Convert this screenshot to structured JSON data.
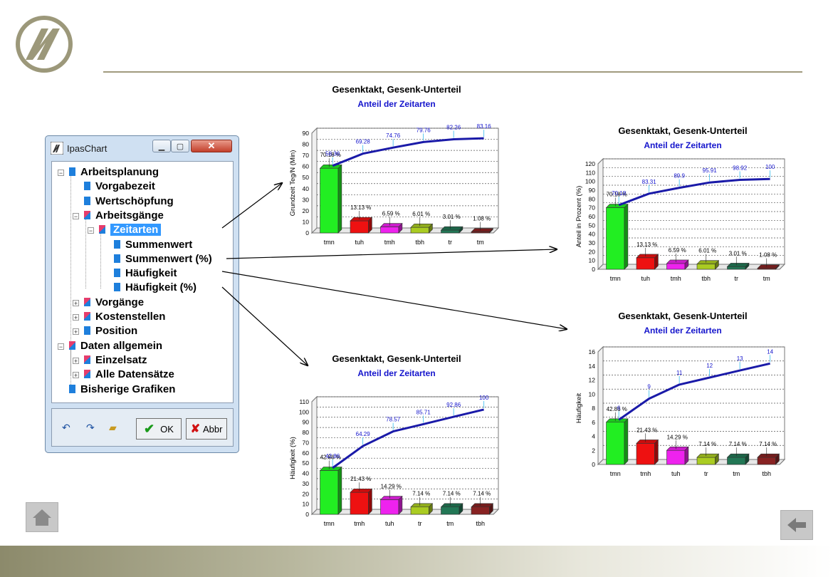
{
  "window": {
    "title": "IpasChart",
    "ok_label": "OK",
    "cancel_label": "Abbr",
    "tree": [
      {
        "label": "Arbeitsplanung",
        "level": 0,
        "expander": "-",
        "icon": "blue"
      },
      {
        "label": "Vorgabezeit",
        "level": 1,
        "expander": "",
        "icon": "blue"
      },
      {
        "label": "Wertschöpfung",
        "level": 1,
        "expander": "",
        "icon": "blue"
      },
      {
        "label": "Arbeitsgänge",
        "level": 1,
        "expander": "-",
        "icon": "folder"
      },
      {
        "label": "Zeitarten",
        "level": 2,
        "expander": "-",
        "icon": "folder",
        "selected": true
      },
      {
        "label": "Summenwert",
        "level": 3,
        "expander": "",
        "icon": "blue"
      },
      {
        "label": "Summenwert (%)",
        "level": 3,
        "expander": "",
        "icon": "blue"
      },
      {
        "label": "Häufigkeit",
        "level": 3,
        "expander": "",
        "icon": "blue"
      },
      {
        "label": "Häufigkeit (%)",
        "level": 3,
        "expander": "",
        "icon": "blue"
      },
      {
        "label": "Vorgänge",
        "level": 1,
        "expander": "+",
        "icon": "folder"
      },
      {
        "label": "Kostenstellen",
        "level": 1,
        "expander": "+",
        "icon": "folder"
      },
      {
        "label": "Position",
        "level": 1,
        "expander": "+",
        "icon": "blue"
      },
      {
        "label": "Daten allgemein",
        "level": 0,
        "expander": "-",
        "icon": "folder"
      },
      {
        "label": "Einzelsatz",
        "level": 1,
        "expander": "+",
        "icon": "folder"
      },
      {
        "label": "Alle Datensätze",
        "level": 1,
        "expander": "+",
        "icon": "folder"
      },
      {
        "label": "Bisherige Grafiken",
        "level": 0,
        "expander": "",
        "icon": "blue"
      }
    ]
  },
  "colors": {
    "green": "#22ee22",
    "red": "#ee1111",
    "magenta": "#ee22ee",
    "olive": "#aacc22",
    "teal": "#227755",
    "brown": "#882222",
    "curve": "#1a1aa8",
    "label_blue": "#1414cc"
  },
  "chart_data": [
    {
      "type": "bar",
      "title": "Gesenktakt, Gesenk-Unterteil",
      "subtitle": "Anteil der Zeitarten",
      "ylabel": "Grundzeit Teg/N (Min)",
      "categories": [
        "tmn",
        "tuh",
        "tmh",
        "tbh",
        "tr",
        "tm"
      ],
      "values": [
        58.36,
        10.92,
        5.48,
        5.0,
        2.5,
        0.9
      ],
      "bar_labels": [
        "70.18 %",
        "13.13 %",
        "6.59 %",
        "6.01 %",
        "3.01 %",
        "1.08 %"
      ],
      "cumulative": [
        58.36,
        69.28,
        74.76,
        79.76,
        82.26,
        83.16
      ],
      "ylim": [
        0,
        90
      ],
      "yticks": [
        "0",
        "10",
        "20",
        "30",
        "40",
        "50",
        "60",
        "70",
        "80",
        "90"
      ]
    },
    {
      "type": "bar",
      "title": "Gesenktakt, Gesenk-Unterteil",
      "subtitle": "Anteil der Zeitarten",
      "ylabel": "Anteil in Prozent (%)",
      "categories": [
        "tmn",
        "tuh",
        "tmh",
        "tbh",
        "tr",
        "tm"
      ],
      "values": [
        70.18,
        13.13,
        6.59,
        6.01,
        3.01,
        1.08
      ],
      "bar_labels": [
        "70.18 %",
        "13.13 %",
        "6.59 %",
        "6.01 %",
        "3.01 %",
        "1.08 %"
      ],
      "cumulative": [
        70.18,
        83.31,
        89.9,
        95.91,
        98.92,
        100
      ],
      "ylim": [
        0,
        120
      ],
      "yticks": [
        "0",
        "10",
        "20",
        "30",
        "40",
        "50",
        "60",
        "70",
        "80",
        "90",
        "100",
        "110",
        "120"
      ]
    },
    {
      "type": "bar",
      "title": "Gesenktakt, Gesenk-Unterteil",
      "subtitle": "Anteil der Zeitarten",
      "ylabel": "Häufigkeit (%)",
      "categories": [
        "tmn",
        "tmh",
        "tuh",
        "tr",
        "tm",
        "tbh"
      ],
      "values": [
        42.86,
        21.43,
        14.29,
        7.14,
        7.14,
        7.14
      ],
      "bar_labels": [
        "42.86 %",
        "21.43 %",
        "14.29 %",
        "7.14 %",
        "7.14 %",
        "7.14 %"
      ],
      "cumulative": [
        42.86,
        64.29,
        78.57,
        85.71,
        92.86,
        100
      ],
      "ylim": [
        0,
        110
      ],
      "yticks": [
        "0",
        "10",
        "20",
        "30",
        "40",
        "50",
        "60",
        "70",
        "80",
        "90",
        "100",
        "110"
      ]
    },
    {
      "type": "bar",
      "title": "Gesenktakt, Gesenk-Unterteil",
      "subtitle": "Anteil der Zeitarten",
      "ylabel": "Häufigkeit",
      "categories": [
        "tmn",
        "tmh",
        "tuh",
        "tr",
        "tm",
        "tbh"
      ],
      "values": [
        6,
        3,
        2,
        1,
        1,
        1
      ],
      "bar_labels": [
        "42.86 %",
        "21.43 %",
        "14.29 %",
        "7.14 %",
        "7.14 %",
        "7.14 %"
      ],
      "cumulative": [
        6,
        9,
        11,
        12,
        13,
        14
      ],
      "ylim": [
        0,
        16
      ],
      "yticks": [
        "0",
        "2",
        "4",
        "6",
        "8",
        "10",
        "12",
        "14",
        "16"
      ]
    }
  ]
}
